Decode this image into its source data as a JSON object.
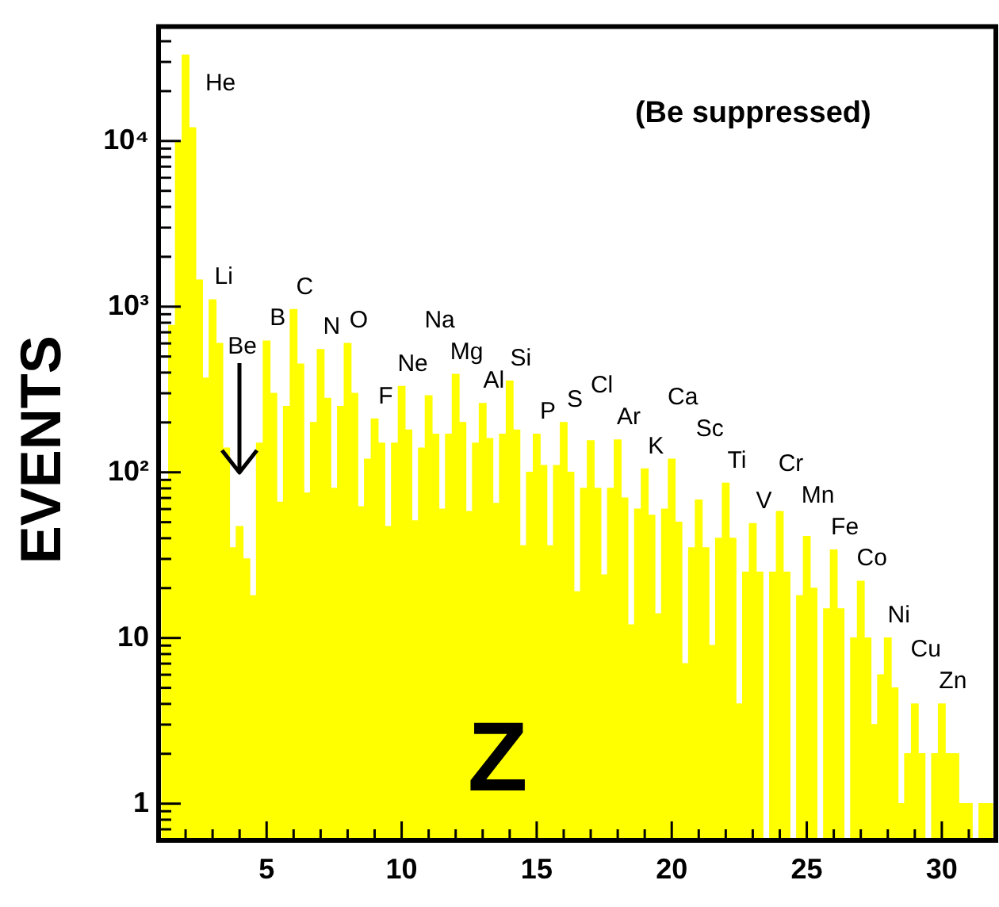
{
  "chart_data": {
    "type": "histogram",
    "xlabel": "Z",
    "ylabel": "EVENTS",
    "log": "y",
    "legend": false,
    "grid": false,
    "color": "#ffff00",
    "bins": [
      1.125,
      1.375,
      1.625,
      1.875,
      2.125,
      2.375,
      2.625,
      2.875,
      3.125,
      3.375,
      3.625,
      3.875,
      4.125,
      4.375,
      4.625,
      4.875,
      5.125,
      5.375,
      5.625,
      5.875,
      6.125,
      6.375,
      6.625,
      6.875,
      7.125,
      7.375,
      7.625,
      7.875,
      8.125,
      8.375,
      8.625,
      8.875,
      9.125,
      9.375,
      9.625,
      9.875,
      10.125,
      10.375,
      10.625,
      10.875,
      11.125,
      11.375,
      11.625,
      11.875,
      12.125,
      12.375,
      12.625,
      12.875,
      13.125,
      13.375,
      13.625,
      13.875,
      14.125,
      14.375,
      14.625,
      14.875,
      15.125,
      15.375,
      15.625,
      15.875,
      16.125,
      16.375,
      16.625,
      16.875,
      17.125,
      17.375,
      17.625,
      17.875,
      18.125,
      18.375,
      18.625,
      18.875,
      19.125,
      19.375,
      19.625,
      19.875,
      20.125,
      20.375,
      20.625,
      20.875,
      21.125,
      21.375,
      21.625,
      21.875,
      22.125,
      22.375,
      22.625,
      22.875,
      23.125,
      23.375,
      23.625,
      23.875,
      24.125,
      24.375,
      24.625,
      24.875,
      25.125,
      25.375,
      25.625,
      25.875,
      26.125,
      26.375,
      26.625,
      26.875,
      27.125,
      27.375,
      27.625,
      27.875,
      28.125,
      28.375,
      28.625,
      28.875,
      29.125,
      29.375,
      29.625,
      29.875,
      30.125,
      30.375,
      30.625,
      30.875,
      31.125,
      31.375,
      31.625,
      31.875
    ],
    "values": [
      90,
      770,
      10000,
      33000,
      12000,
      1450,
      370,
      1100,
      600,
      140,
      35,
      47,
      30,
      18,
      150,
      620,
      300,
      66,
      250,
      960,
      450,
      75,
      200,
      550,
      280,
      80,
      250,
      600,
      300,
      62,
      120,
      210,
      150,
      47,
      150,
      330,
      180,
      51,
      140,
      290,
      170,
      60,
      170,
      390,
      200,
      58,
      150,
      260,
      160,
      65,
      170,
      355,
      180,
      36,
      100,
      170,
      110,
      36,
      110,
      200,
      100,
      19,
      80,
      155,
      80,
      24,
      80,
      157,
      70,
      12,
      60,
      105,
      55,
      14,
      60,
      120,
      50,
      7,
      35,
      68,
      35,
      9,
      40,
      86,
      40,
      4,
      25,
      49,
      25,
      null,
      25,
      58,
      25,
      null,
      18,
      41,
      20,
      null,
      15,
      34,
      15,
      null,
      10,
      22,
      10,
      3,
      6,
      10,
      5,
      1,
      2,
      4,
      2,
      null,
      2,
      4,
      2,
      2,
      1,
      1,
      null,
      1,
      1
    ],
    "xlim": [
      1,
      32
    ],
    "xticks": [
      {
        "value": 2,
        "label": null
      },
      {
        "value": 3,
        "label": null
      },
      {
        "value": 4,
        "label": null
      },
      5,
      {
        "value": 6,
        "label": null
      },
      {
        "value": 7,
        "label": null
      },
      {
        "value": 8,
        "label": null
      },
      {
        "value": 9,
        "label": null
      },
      10,
      {
        "value": 11,
        "label": null
      },
      {
        "value": 12,
        "label": null
      },
      {
        "value": 13,
        "label": null
      },
      {
        "value": 14,
        "label": null
      },
      15,
      {
        "value": 16,
        "label": null
      },
      {
        "value": 17,
        "label": null
      },
      {
        "value": 18,
        "label": null
      },
      {
        "value": 19,
        "label": null
      },
      20,
      {
        "value": 21,
        "label": null
      },
      {
        "value": 22,
        "label": null
      },
      {
        "value": 23,
        "label": null
      },
      {
        "value": 24,
        "label": null
      },
      25,
      {
        "value": 26,
        "label": null
      },
      {
        "value": 27,
        "label": null
      },
      {
        "value": 28,
        "label": null
      },
      {
        "value": 29,
        "label": null
      },
      30,
      {
        "value": 31,
        "label": null
      }
    ],
    "ylim": [
      0.63,
      49000
    ],
    "yticks": [
      {
        "value": 0.7,
        "label": null
      },
      {
        "value": 0.8,
        "label": null
      },
      {
        "value": 0.9,
        "label": null
      },
      1,
      {
        "value": 2,
        "label": null
      },
      {
        "value": 3,
        "label": null
      },
      {
        "value": 4,
        "label": null
      },
      {
        "value": 5,
        "label": null
      },
      {
        "value": 6,
        "label": null
      },
      {
        "value": 7,
        "label": null
      },
      {
        "value": 8,
        "label": null
      },
      {
        "value": 9,
        "label": null
      },
      10,
      {
        "value": 20,
        "label": null
      },
      {
        "value": 30,
        "label": null
      },
      {
        "value": 40,
        "label": null
      },
      {
        "value": 50,
        "label": null
      },
      {
        "value": 60,
        "label": null
      },
      {
        "value": 70,
        "label": null
      },
      {
        "value": 80,
        "label": null
      },
      {
        "value": 90,
        "label": null
      },
      {
        "value": 100,
        "label": "10²"
      },
      {
        "value": 200,
        "label": null
      },
      {
        "value": 300,
        "label": null
      },
      {
        "value": 400,
        "label": null
      },
      {
        "value": 500,
        "label": null
      },
      {
        "value": 600,
        "label": null
      },
      {
        "value": 700,
        "label": null
      },
      {
        "value": 800,
        "label": null
      },
      {
        "value": 900,
        "label": null
      },
      {
        "value": 1000,
        "label": "10³"
      },
      {
        "value": 2000,
        "label": null
      },
      {
        "value": 3000,
        "label": null
      },
      {
        "value": 4000,
        "label": null
      },
      {
        "value": 5000,
        "label": null
      },
      {
        "value": 6000,
        "label": null
      },
      {
        "value": 7000,
        "label": null
      },
      {
        "value": 8000,
        "label": null
      },
      {
        "value": 9000,
        "label": null
      },
      {
        "value": 10000,
        "label": "10⁴"
      },
      {
        "value": 20000,
        "label": null
      },
      {
        "value": 30000,
        "label": null
      },
      {
        "value": 40000,
        "label": null
      }
    ],
    "annotations": [
      "(Be suppressed)",
      {
        "text": "He",
        "x": 2,
        "y": 33000
      },
      {
        "text": "Li",
        "x": 3,
        "y": 1100
      },
      "Be",
      {
        "text": "B",
        "x": 5,
        "y": 620
      },
      {
        "text": "C",
        "x": 6,
        "y": 960
      },
      {
        "text": "N",
        "x": 7,
        "y": 550
      },
      {
        "text": "O",
        "x": 8,
        "y": 600
      },
      {
        "text": "F",
        "x": 9,
        "y": 210
      },
      {
        "text": "Ne",
        "x": 10,
        "y": 330
      },
      {
        "text": "Na",
        "x": 11,
        "y": 290
      },
      {
        "text": "Mg",
        "x": 12,
        "y": 390
      },
      {
        "text": "Al",
        "x": 13,
        "y": 260
      },
      {
        "text": "Si",
        "x": 14,
        "y": 355
      },
      {
        "text": "P",
        "x": 15,
        "y": 170
      },
      {
        "text": "S",
        "x": 16,
        "y": 200
      },
      {
        "text": "Cl",
        "x": 17,
        "y": 155
      },
      {
        "text": "Ar",
        "x": 18,
        "y": 157
      },
      {
        "text": "K",
        "x": 19,
        "y": 105
      },
      {
        "text": "Ca",
        "x": 20,
        "y": 120
      },
      {
        "text": "Sc",
        "x": 21,
        "y": 68
      },
      {
        "text": "Ti",
        "x": 22,
        "y": 86
      },
      {
        "text": "V",
        "x": 23,
        "y": 49
      },
      {
        "text": "Cr",
        "x": 24,
        "y": 58
      },
      {
        "text": "Mn",
        "x": 25,
        "y": 41
      },
      {
        "text": "Fe",
        "x": 26,
        "y": 34
      },
      {
        "text": "Co",
        "x": 27,
        "y": 22
      },
      {
        "text": "Ni",
        "x": 28,
        "y": 10
      },
      {
        "text": "Cu",
        "x": 29,
        "y": 4
      },
      {
        "text": "Zn",
        "x": 30,
        "y": 4
      }
    ]
  }
}
